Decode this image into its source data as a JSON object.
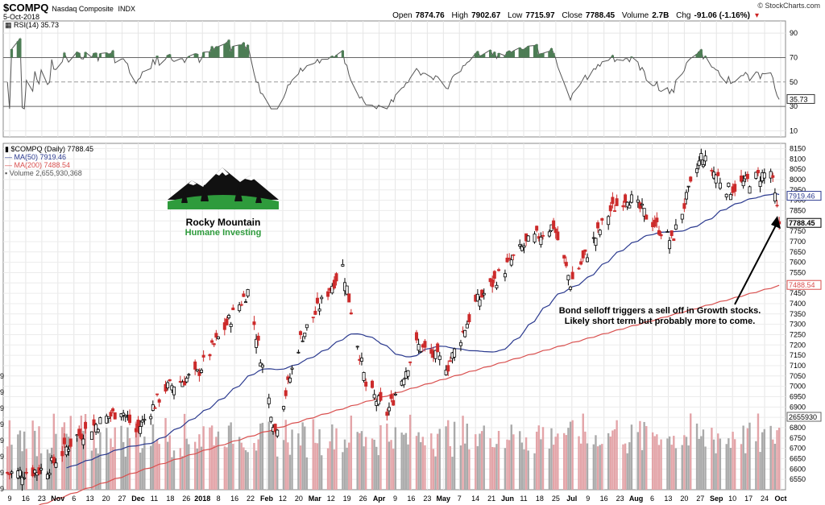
{
  "header": {
    "symbol": "$COMPQ",
    "name": "Nasdaq Composite",
    "exchange": "INDX",
    "date": "5-Oct-2018",
    "open_label": "Open",
    "open": "7874.76",
    "high_label": "High",
    "high": "7902.67",
    "low_label": "Low",
    "low": "7715.97",
    "close_label": "Close",
    "close": "7788.45",
    "volume_label": "Volume",
    "volume": "2.7B",
    "chg_label": "Chg",
    "chg": "-91.06 (-1.16%)",
    "source": "© StockCharts.com"
  },
  "rsi_panel": {
    "label": "RSI(14) 35.73",
    "current": "35.73",
    "ticks": [
      "90",
      "70",
      "50",
      "30",
      "10"
    ],
    "overbought": 70,
    "oversold": 30
  },
  "price_panel": {
    "legend": {
      "main": "$COMPQ (Daily) 7788.45",
      "ma50": "MA(50) 7919.46",
      "ma200": "MA(200) 7488.54",
      "volume": "Volume 2,655,930,368"
    },
    "tag_ma50": "7919.46",
    "tag_close": "7788.45",
    "tag_ma200": "7488.54",
    "tag_volume": "2655930",
    "ticks": [
      "8150",
      "8100",
      "8050",
      "8000",
      "7950",
      "7900",
      "7850",
      "7800",
      "7750",
      "7700",
      "7650",
      "7600",
      "7550",
      "7500",
      "7450",
      "7400",
      "7350",
      "7300",
      "7250",
      "7200",
      "7150",
      "7100",
      "7050",
      "7000",
      "6950",
      "6900",
      "6850",
      "6800",
      "6750",
      "6700",
      "6650",
      "6600",
      "6550"
    ],
    "left_vol_ticks": [
      "9",
      "9",
      "9",
      "9",
      "9",
      "9",
      "9",
      "9"
    ]
  },
  "logo": {
    "line1": "Rocky Mountain",
    "line2": "Humane Investing"
  },
  "annotation": {
    "line1": "Bond selloff triggers a sell off in Growth stocks.",
    "line2": "Likely short term but probably more to come."
  },
  "x_labels": [
    "9",
    "16",
    "23",
    "Nov",
    "6",
    "13",
    "20",
    "27",
    "Dec",
    "11",
    "18",
    "26",
    "2018",
    "8",
    "16",
    "22",
    "Feb",
    "12",
    "20",
    "Mar",
    "12",
    "19",
    "26",
    "Apr",
    "9",
    "16",
    "23",
    "May",
    "7",
    "14",
    "21",
    "Jun",
    "11",
    "18",
    "25",
    "Jul",
    "9",
    "16",
    "23",
    "Aug",
    "6",
    "13",
    "20",
    "27",
    "Sep",
    "10",
    "17",
    "24",
    "Oct"
  ],
  "colors": {
    "up": "#000000",
    "down": "#cc2b2b",
    "ma50": "#2b3a8f",
    "ma200": "#d9504f",
    "volume_up": "#aaaaaa",
    "volume_down": "#e3a4a8",
    "rsi_fill": "#4d7d55"
  },
  "chart_data": {
    "type": "candlestick",
    "title": "$COMPQ Nasdaq Composite INDX",
    "period": "Daily",
    "y_range": [
      6500,
      8175
    ],
    "close_series": [
      {
        "date": "2017-10-09",
        "value": 6580
      },
      {
        "date": "2017-10-23",
        "value": 6600
      },
      {
        "date": "2017-11-06",
        "value": 6760
      },
      {
        "date": "2017-11-27",
        "value": 6890
      },
      {
        "date": "2017-12-04",
        "value": 6780
      },
      {
        "date": "2017-12-18",
        "value": 6990
      },
      {
        "date": "2018-01-02",
        "value": 7060
      },
      {
        "date": "2018-01-16",
        "value": 7300
      },
      {
        "date": "2018-01-26",
        "value": 7460
      },
      {
        "date": "2018-02-08",
        "value": 6780
      },
      {
        "date": "2018-02-20",
        "value": 7230
      },
      {
        "date": "2018-03-12",
        "value": 7580
      },
      {
        "date": "2018-03-23",
        "value": 7000
      },
      {
        "date": "2018-04-02",
        "value": 6870
      },
      {
        "date": "2018-04-16",
        "value": 7200
      },
      {
        "date": "2018-05-01",
        "value": 7100
      },
      {
        "date": "2018-05-14",
        "value": 7400
      },
      {
        "date": "2018-06-06",
        "value": 7680
      },
      {
        "date": "2018-06-20",
        "value": 7780
      },
      {
        "date": "2018-06-28",
        "value": 7500
      },
      {
        "date": "2018-07-17",
        "value": 7850
      },
      {
        "date": "2018-07-25",
        "value": 7920
      },
      {
        "date": "2018-08-15",
        "value": 7700
      },
      {
        "date": "2018-08-29",
        "value": 8110
      },
      {
        "date": "2018-09-11",
        "value": 7950
      },
      {
        "date": "2018-10-01",
        "value": 8040
      },
      {
        "date": "2018-10-05",
        "value": 7788.45
      }
    ],
    "ma50": "7919.46",
    "ma200": "7488.54",
    "rsi14": "35.73",
    "volume": "2,655,930,368"
  }
}
